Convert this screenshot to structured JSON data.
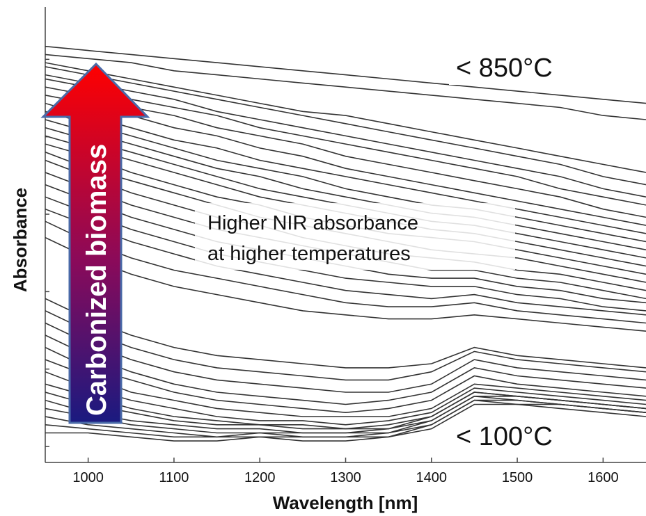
{
  "chart_data": {
    "type": "line",
    "xlabel": "Wavelength [nm]",
    "ylabel": "Absorbance",
    "xlim": [
      950,
      1650
    ],
    "ylim": [
      0,
      1
    ],
    "x_ticks": [
      1000,
      1100,
      1200,
      1300,
      1400,
      1500,
      1600
    ],
    "y_tick_labels_shown": false,
    "grid": false,
    "x": [
      950,
      1000,
      1050,
      1100,
      1150,
      1200,
      1250,
      1300,
      1350,
      1400,
      1450,
      1500,
      1550,
      1600,
      1650
    ],
    "series_count": 36,
    "series": [
      {
        "values": [
          0.98,
          0.97,
          0.96,
          0.95,
          0.94,
          0.93,
          0.92,
          0.91,
          0.9,
          0.89,
          0.88,
          0.87,
          0.86,
          0.85,
          0.84
        ]
      },
      {
        "values": [
          0.96,
          0.95,
          0.94,
          0.92,
          0.91,
          0.9,
          0.89,
          0.88,
          0.87,
          0.86,
          0.85,
          0.84,
          0.83,
          0.81,
          0.8
        ]
      },
      {
        "values": [
          0.94,
          0.92,
          0.9,
          0.88,
          0.86,
          0.84,
          0.82,
          0.81,
          0.79,
          0.77,
          0.75,
          0.73,
          0.71,
          0.69,
          0.67
        ]
      },
      {
        "values": [
          0.93,
          0.91,
          0.89,
          0.87,
          0.85,
          0.83,
          0.81,
          0.79,
          0.77,
          0.75,
          0.73,
          0.71,
          0.69,
          0.66,
          0.64
        ]
      },
      {
        "values": [
          0.91,
          0.89,
          0.87,
          0.85,
          0.82,
          0.8,
          0.78,
          0.76,
          0.74,
          0.72,
          0.7,
          0.68,
          0.66,
          0.63,
          0.61
        ]
      },
      {
        "values": [
          0.9,
          0.88,
          0.85,
          0.83,
          0.81,
          0.78,
          0.76,
          0.74,
          0.72,
          0.7,
          0.68,
          0.66,
          0.63,
          0.61,
          0.59
        ]
      },
      {
        "values": [
          0.88,
          0.86,
          0.83,
          0.81,
          0.78,
          0.76,
          0.74,
          0.71,
          0.69,
          0.67,
          0.65,
          0.63,
          0.61,
          0.58,
          0.56
        ]
      },
      {
        "values": [
          0.86,
          0.84,
          0.81,
          0.78,
          0.76,
          0.73,
          0.71,
          0.68,
          0.66,
          0.64,
          0.62,
          0.6,
          0.58,
          0.56,
          0.54
        ]
      },
      {
        "values": [
          0.84,
          0.81,
          0.78,
          0.75,
          0.73,
          0.7,
          0.68,
          0.66,
          0.64,
          0.62,
          0.6,
          0.58,
          0.56,
          0.54,
          0.52
        ]
      },
      {
        "values": [
          0.82,
          0.79,
          0.76,
          0.73,
          0.7,
          0.68,
          0.66,
          0.63,
          0.61,
          0.59,
          0.58,
          0.56,
          0.54,
          0.52,
          0.5
        ]
      },
      {
        "values": [
          0.8,
          0.77,
          0.74,
          0.71,
          0.68,
          0.66,
          0.63,
          0.61,
          0.59,
          0.57,
          0.56,
          0.54,
          0.52,
          0.5,
          0.48
        ]
      },
      {
        "values": [
          0.78,
          0.75,
          0.72,
          0.69,
          0.66,
          0.63,
          0.61,
          0.59,
          0.57,
          0.55,
          0.54,
          0.52,
          0.5,
          0.48,
          0.46
        ]
      },
      {
        "values": [
          0.76,
          0.73,
          0.7,
          0.67,
          0.64,
          0.61,
          0.59,
          0.57,
          0.55,
          0.53,
          0.52,
          0.5,
          0.48,
          0.46,
          0.44
        ]
      },
      {
        "values": [
          0.74,
          0.71,
          0.67,
          0.64,
          0.61,
          0.59,
          0.56,
          0.54,
          0.52,
          0.51,
          0.5,
          0.48,
          0.46,
          0.44,
          0.42
        ]
      },
      {
        "values": [
          0.72,
          0.68,
          0.65,
          0.62,
          0.59,
          0.56,
          0.54,
          0.52,
          0.5,
          0.48,
          0.47,
          0.46,
          0.44,
          0.42,
          0.4
        ]
      },
      {
        "values": [
          0.7,
          0.66,
          0.62,
          0.59,
          0.56,
          0.54,
          0.51,
          0.49,
          0.47,
          0.46,
          0.45,
          0.43,
          0.42,
          0.4,
          0.38
        ]
      },
      {
        "values": [
          0.67,
          0.63,
          0.59,
          0.56,
          0.53,
          0.51,
          0.49,
          0.47,
          0.45,
          0.43,
          0.43,
          0.41,
          0.4,
          0.38,
          0.36
        ]
      },
      {
        "values": [
          0.64,
          0.6,
          0.56,
          0.53,
          0.5,
          0.48,
          0.46,
          0.44,
          0.42,
          0.41,
          0.41,
          0.39,
          0.38,
          0.36,
          0.35
        ]
      },
      {
        "values": [
          0.61,
          0.57,
          0.53,
          0.5,
          0.47,
          0.45,
          0.43,
          0.41,
          0.4,
          0.39,
          0.39,
          0.37,
          0.36,
          0.34,
          0.33
        ]
      },
      {
        "values": [
          0.58,
          0.54,
          0.5,
          0.47,
          0.44,
          0.42,
          0.4,
          0.38,
          0.37,
          0.36,
          0.37,
          0.35,
          0.34,
          0.33,
          0.32
        ]
      },
      {
        "values": [
          0.55,
          0.5,
          0.46,
          0.43,
          0.41,
          0.39,
          0.37,
          0.35,
          0.34,
          0.34,
          0.35,
          0.33,
          0.32,
          0.31,
          0.3
        ]
      },
      {
        "values": [
          0.51,
          0.46,
          0.42,
          0.39,
          0.37,
          0.35,
          0.33,
          0.32,
          0.31,
          0.31,
          0.32,
          0.31,
          0.3,
          0.29,
          0.28
        ]
      },
      {
        "values": [
          0.36,
          0.31,
          0.27,
          0.24,
          0.22,
          0.21,
          0.2,
          0.19,
          0.19,
          0.2,
          0.24,
          0.22,
          0.21,
          0.2,
          0.19
        ]
      },
      {
        "values": [
          0.33,
          0.28,
          0.24,
          0.21,
          0.19,
          0.18,
          0.17,
          0.16,
          0.16,
          0.18,
          0.23,
          0.21,
          0.2,
          0.19,
          0.18
        ]
      },
      {
        "values": [
          0.3,
          0.25,
          0.21,
          0.18,
          0.16,
          0.15,
          0.14,
          0.13,
          0.13,
          0.15,
          0.21,
          0.19,
          0.18,
          0.17,
          0.16
        ]
      },
      {
        "values": [
          0.27,
          0.22,
          0.18,
          0.15,
          0.13,
          0.12,
          0.11,
          0.1,
          0.11,
          0.13,
          0.19,
          0.17,
          0.16,
          0.15,
          0.14
        ]
      },
      {
        "values": [
          0.24,
          0.19,
          0.16,
          0.13,
          0.11,
          0.1,
          0.09,
          0.08,
          0.09,
          0.11,
          0.17,
          0.15,
          0.14,
          0.13,
          0.12
        ]
      },
      {
        "values": [
          0.21,
          0.17,
          0.13,
          0.11,
          0.09,
          0.08,
          0.07,
          0.07,
          0.07,
          0.09,
          0.15,
          0.14,
          0.13,
          0.12,
          0.11
        ]
      },
      {
        "values": [
          0.18,
          0.14,
          0.11,
          0.09,
          0.07,
          0.06,
          0.06,
          0.05,
          0.06,
          0.08,
          0.14,
          0.13,
          0.12,
          0.11,
          0.1
        ]
      },
      {
        "values": [
          0.15,
          0.12,
          0.09,
          0.07,
          0.06,
          0.05,
          0.05,
          0.04,
          0.05,
          0.07,
          0.13,
          0.12,
          0.11,
          0.1,
          0.09
        ]
      },
      {
        "values": [
          0.13,
          0.1,
          0.08,
          0.06,
          0.05,
          0.05,
          0.04,
          0.04,
          0.04,
          0.07,
          0.13,
          0.12,
          0.11,
          0.1,
          0.09
        ]
      },
      {
        "values": [
          0.11,
          0.08,
          0.06,
          0.05,
          0.04,
          0.04,
          0.03,
          0.03,
          0.04,
          0.06,
          0.12,
          0.12,
          0.11,
          0.1,
          0.09
        ]
      },
      {
        "values": [
          0.09,
          0.07,
          0.05,
          0.04,
          0.03,
          0.03,
          0.03,
          0.03,
          0.03,
          0.06,
          0.12,
          0.11,
          0.1,
          0.09,
          0.08
        ]
      },
      {
        "values": [
          0.07,
          0.05,
          0.04,
          0.03,
          0.02,
          0.03,
          0.02,
          0.02,
          0.03,
          0.05,
          0.11,
          0.11,
          0.1,
          0.09,
          0.08
        ]
      },
      {
        "values": [
          0.05,
          0.04,
          0.03,
          0.02,
          0.02,
          0.02,
          0.02,
          0.02,
          0.02,
          0.05,
          0.11,
          0.1,
          0.1,
          0.09,
          0.08
        ]
      },
      {
        "values": [
          0.03,
          0.03,
          0.02,
          0.01,
          0.01,
          0.02,
          0.01,
          0.01,
          0.02,
          0.04,
          0.1,
          0.1,
          0.09,
          0.08,
          0.07
        ]
      }
    ],
    "annotations": {
      "top_label": "< 850°C",
      "bottom_label": "< 100°C",
      "center_line1": "Higher NIR absorbance",
      "center_line2": "at higher temperatures",
      "arrow_label": "Carbonized biomass"
    },
    "colors": {
      "line": "#333333",
      "arrow_top": "#ff0000",
      "arrow_bottom": "#1a1a80",
      "arrow_border": "#4a6aa8"
    }
  }
}
